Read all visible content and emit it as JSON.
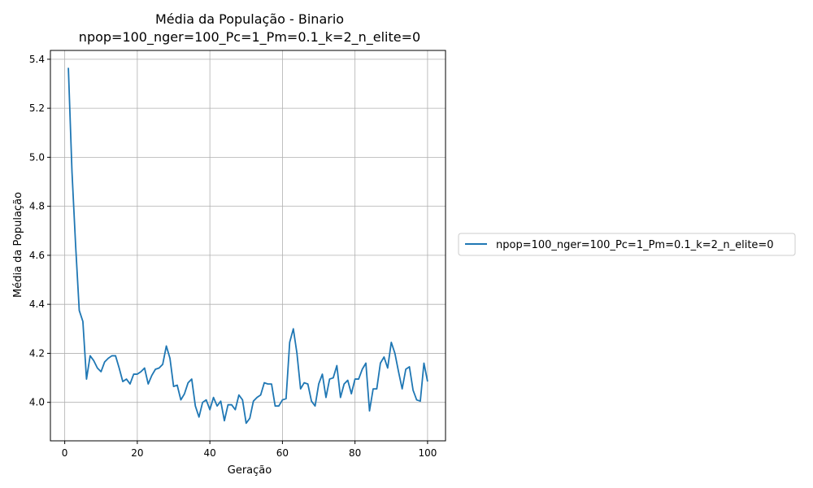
{
  "chart_data": {
    "type": "line",
    "title": "Média da População - Binario",
    "subtitle": "npop=100_nger=100_Pc=1_Pm=0.1_k=2_n_elite=0",
    "xlabel": "Geração",
    "ylabel": "Média da População",
    "xlim": [
      -3.95,
      104.95
    ],
    "ylim": [
      3.843,
      5.436
    ],
    "xticks": [
      0,
      20,
      40,
      60,
      80,
      100
    ],
    "yticks": [
      4.0,
      4.2,
      4.4,
      4.6,
      4.8,
      5.0,
      5.2,
      5.4
    ],
    "grid": true,
    "legend_position": "outside-right",
    "series": [
      {
        "name": "npop=100_nger=100_Pc=1_Pm=0.1_k=2_n_elite=0",
        "color": "#1f77b4",
        "x": [
          1,
          2,
          3,
          4,
          5,
          6,
          7,
          8,
          9,
          10,
          11,
          12,
          13,
          14,
          15,
          16,
          17,
          18,
          19,
          20,
          21,
          22,
          23,
          24,
          25,
          26,
          27,
          28,
          29,
          30,
          31,
          32,
          33,
          34,
          35,
          36,
          37,
          38,
          39,
          40,
          41,
          42,
          43,
          44,
          45,
          46,
          47,
          48,
          49,
          50,
          51,
          52,
          53,
          54,
          55,
          56,
          57,
          58,
          59,
          60,
          61,
          62,
          63,
          64,
          65,
          66,
          67,
          68,
          69,
          70,
          71,
          72,
          73,
          74,
          75,
          76,
          77,
          78,
          79,
          80,
          81,
          82,
          83,
          84,
          85,
          86,
          87,
          88,
          89,
          90,
          91,
          92,
          93,
          94,
          95,
          96,
          97,
          98,
          99,
          100
        ],
        "values": [
          5.365,
          4.94,
          4.64,
          4.375,
          4.33,
          4.095,
          4.19,
          4.17,
          4.14,
          4.125,
          4.165,
          4.18,
          4.19,
          4.19,
          4.14,
          4.085,
          4.095,
          4.075,
          4.115,
          4.115,
          4.125,
          4.14,
          4.075,
          4.11,
          4.135,
          4.14,
          4.155,
          4.23,
          4.18,
          4.065,
          4.07,
          4.01,
          4.035,
          4.08,
          4.095,
          3.985,
          3.94,
          4.0,
          4.01,
          3.97,
          4.02,
          3.985,
          4.005,
          3.925,
          3.99,
          3.99,
          3.97,
          4.03,
          4.01,
          3.915,
          3.935,
          4.005,
          4.02,
          4.03,
          4.08,
          4.075,
          4.075,
          3.985,
          3.985,
          4.01,
          4.015,
          4.245,
          4.3,
          4.2,
          4.055,
          4.08,
          4.075,
          4.005,
          3.985,
          4.075,
          4.115,
          4.02,
          4.095,
          4.1,
          4.15,
          4.02,
          4.075,
          4.09,
          4.035,
          4.095,
          4.095,
          4.135,
          4.16,
          3.965,
          4.055,
          4.055,
          4.16,
          4.185,
          4.14,
          4.245,
          4.2,
          4.125,
          4.055,
          4.135,
          4.145,
          4.05,
          4.01,
          4.005,
          4.16,
          4.085
        ]
      }
    ]
  }
}
